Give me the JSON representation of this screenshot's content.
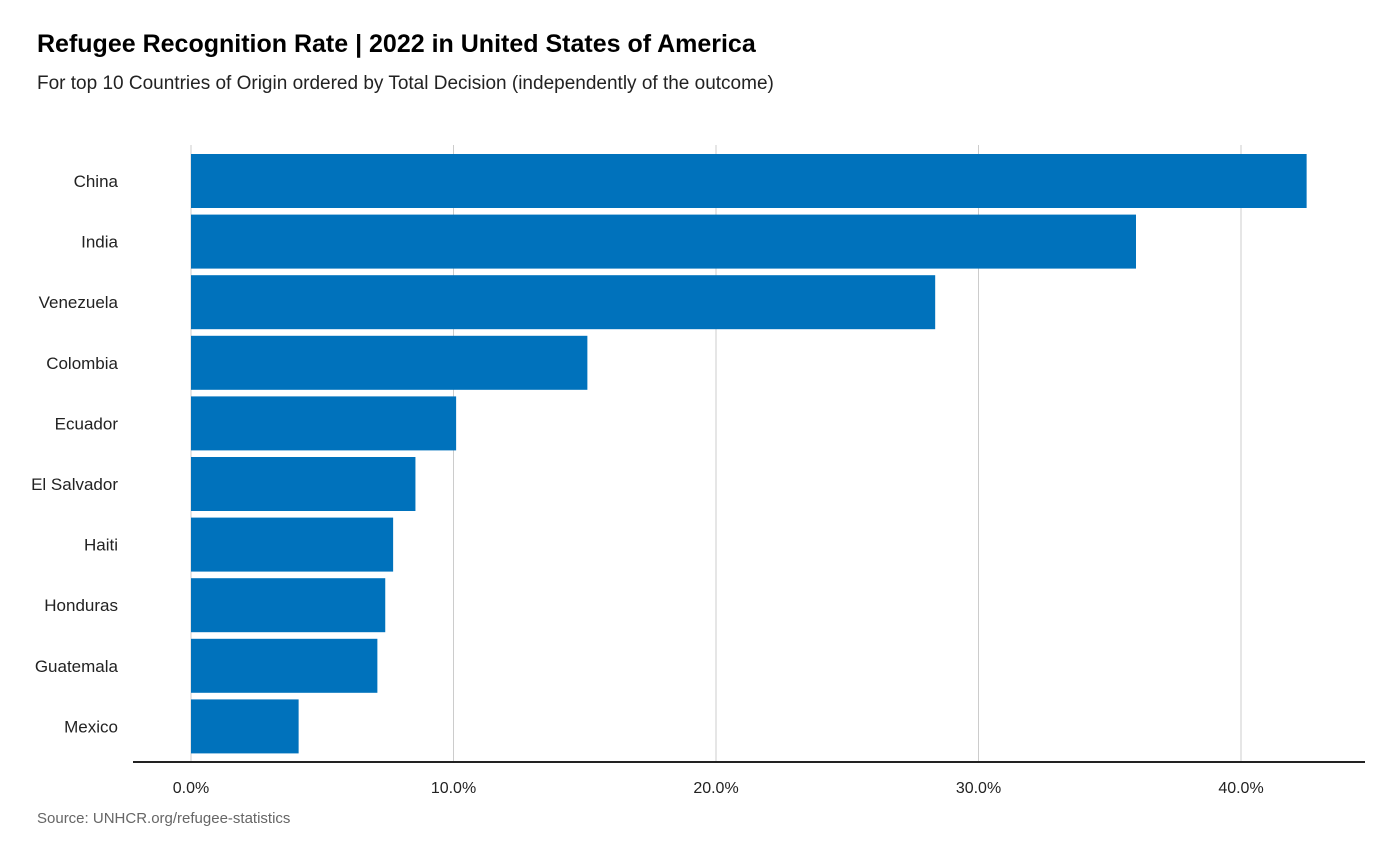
{
  "chart_data": {
    "type": "bar",
    "orientation": "horizontal",
    "title": "Refugee Recognition Rate | 2022 in United States of America",
    "subtitle": "For top 10 Countries of Origin ordered by Total Decision (independently of the outcome)",
    "source": "Source: UNHCR.org/refugee-statistics",
    "categories": [
      "China",
      "India",
      "Venezuela",
      "Colombia",
      "Ecuador",
      "El Salvador",
      "Haiti",
      "Honduras",
      "Guatemala",
      "Mexico"
    ],
    "values": [
      42.5,
      36.0,
      28.35,
      15.1,
      10.1,
      8.55,
      7.7,
      7.4,
      7.1,
      4.1
    ],
    "xlabel": "",
    "ylabel": "",
    "xlim": [
      0,
      45
    ],
    "ticks": [
      0,
      10,
      20,
      30,
      40
    ],
    "tick_labels": [
      "0.0%",
      "10.0%",
      "20.0%",
      "30.0%",
      "40.0%"
    ],
    "grid": true,
    "bar_color": "#0072bc",
    "grid_color": "#cccccc",
    "axis_color": "#222222"
  }
}
